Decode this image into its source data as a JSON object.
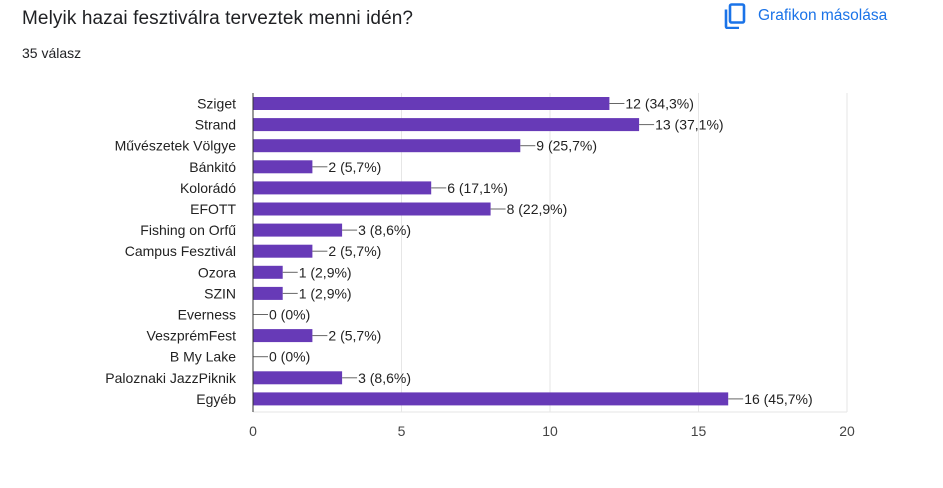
{
  "question": {
    "title": "Melyik hazai fesztiválra terveztek menni idén?",
    "responses": "35 válasz"
  },
  "toolbar": {
    "copy_chart_label": "Grafikon másolása",
    "copy_icon": "copy-icon"
  },
  "colors": {
    "bar": "#673ab7",
    "accent": "#1a73e8",
    "grid": "#e6e6e6",
    "axis": "#333333"
  },
  "chart_data": {
    "type": "bar",
    "orientation": "horizontal",
    "categories": [
      "Sziget",
      "Strand",
      "Művészetek Völgye",
      "Bánkitó",
      "Kolorádó",
      "EFOTT",
      "Fishing on Orfű",
      "Campus Fesztivál",
      "Ozora",
      "SZIN",
      "Everness",
      "VeszprémFest",
      "B My Lake",
      "Paloznaki JazzPiknik",
      "Egyéb"
    ],
    "values": [
      12,
      13,
      9,
      2,
      6,
      8,
      3,
      2,
      1,
      1,
      0,
      2,
      0,
      3,
      16
    ],
    "labels": [
      "12 (34,3%)",
      "13 (37,1%)",
      "9 (25,7%)",
      "2 (5,7%)",
      "6 (17,1%)",
      "8 (22,9%)",
      "3 (8,6%)",
      "2 (5,7%)",
      "1 (2,9%)",
      "1 (2,9%)",
      "0 (0%)",
      "2 (5,7%)",
      "0 (0%)",
      "3 (8,6%)",
      "16 (45,7%)"
    ],
    "xlim": [
      0,
      20
    ],
    "xticks": [
      0,
      5,
      10,
      15,
      20
    ],
    "grid": true
  }
}
